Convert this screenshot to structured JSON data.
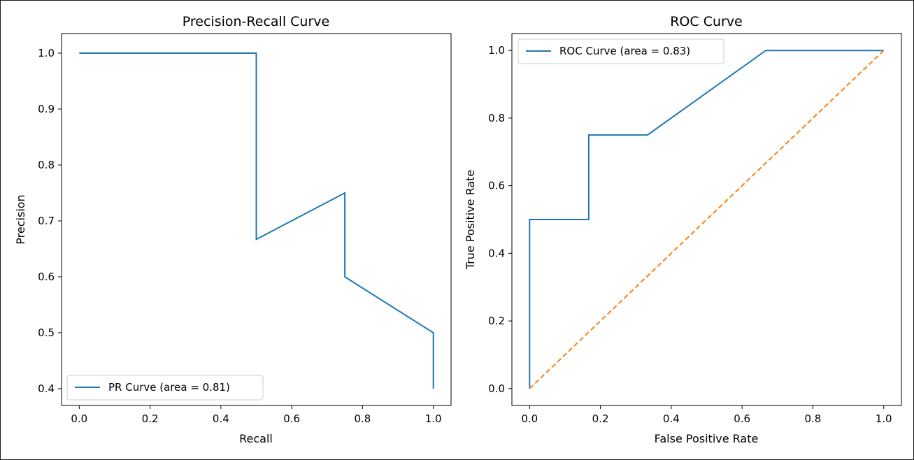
{
  "chart_data": [
    {
      "type": "line",
      "title": "Precision-Recall Curve",
      "xlabel": "Recall",
      "ylabel": "Precision",
      "xlim": [
        -0.05,
        1.05
      ],
      "ylim": [
        0.37,
        1.035
      ],
      "xticks": [
        "0.0",
        "0.2",
        "0.4",
        "0.6",
        "0.8",
        "1.0"
      ],
      "yticks": [
        "0.4",
        "0.5",
        "0.6",
        "0.7",
        "0.8",
        "0.9",
        "1.0"
      ],
      "legend_position": "lower-left",
      "series": [
        {
          "name": "PR Curve (area = 0.81)",
          "color": "#1f77b4",
          "style": "solid",
          "x": [
            0.0,
            0.5,
            0.5,
            0.75,
            0.75,
            1.0,
            1.0
          ],
          "y": [
            1.0,
            1.0,
            0.667,
            0.75,
            0.6,
            0.5,
            0.4
          ]
        }
      ]
    },
    {
      "type": "line",
      "title": "ROC Curve",
      "xlabel": "False Positive Rate",
      "ylabel": "True Positive Rate",
      "xlim": [
        -0.05,
        1.05
      ],
      "ylim": [
        -0.05,
        1.05
      ],
      "xticks": [
        "0.0",
        "0.2",
        "0.4",
        "0.6",
        "0.8",
        "1.0"
      ],
      "yticks": [
        "0.0",
        "0.2",
        "0.4",
        "0.6",
        "0.8",
        "1.0"
      ],
      "legend_position": "upper-left",
      "series": [
        {
          "name": "ROC Curve (area = 0.83)",
          "color": "#1f77b4",
          "style": "solid",
          "x": [
            0.0,
            0.0,
            0.167,
            0.167,
            0.333,
            0.667,
            1.0
          ],
          "y": [
            0.0,
            0.5,
            0.5,
            0.75,
            0.75,
            1.0,
            1.0
          ]
        },
        {
          "color": "#ff7f0e",
          "style": "dashed",
          "x": [
            0.0,
            1.0
          ],
          "y": [
            0.0,
            1.0
          ]
        }
      ]
    }
  ]
}
